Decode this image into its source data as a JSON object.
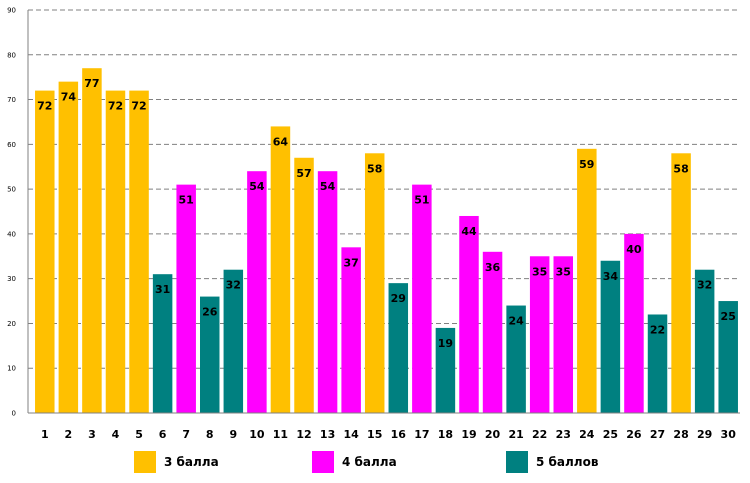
{
  "chart_data": {
    "type": "bar",
    "categories": [
      "1",
      "2",
      "3",
      "4",
      "5",
      "6",
      "7",
      "8",
      "9",
      "10",
      "11",
      "12",
      "13",
      "14",
      "15",
      "16",
      "17",
      "18",
      "19",
      "20",
      "21",
      "22",
      "23",
      "24",
      "25",
      "26",
      "27",
      "28",
      "29",
      "30"
    ],
    "values": [
      72,
      74,
      77,
      72,
      72,
      31,
      51,
      26,
      32,
      54,
      64,
      57,
      54,
      37,
      58,
      29,
      51,
      19,
      44,
      36,
      24,
      35,
      35,
      59,
      34,
      40,
      22,
      58,
      32,
      25
    ],
    "groups": [
      "g3",
      "g3",
      "g3",
      "g3",
      "g3",
      "g5",
      "g4",
      "g5",
      "g5",
      "g4",
      "g3",
      "g3",
      "g4",
      "g4",
      "g3",
      "g5",
      "g4",
      "g5",
      "g4",
      "g4",
      "g5",
      "g4",
      "g4",
      "g3",
      "g5",
      "g4",
      "g5",
      "g3",
      "g5",
      "g5"
    ],
    "legend": [
      {
        "key": "g3",
        "label": "3 балла",
        "color": "#FFC000"
      },
      {
        "key": "g4",
        "label": "4 балла",
        "color": "#FF00FF"
      },
      {
        "key": "g5",
        "label": "5 баллов",
        "color": "#008080"
      }
    ],
    "ylim": [
      0,
      90
    ],
    "yticks": [
      0,
      10,
      20,
      30,
      40,
      50,
      60,
      70,
      80,
      90
    ],
    "grid": true,
    "legend_position": "bottom",
    "title": "",
    "xlabel": "",
    "ylabel": ""
  }
}
